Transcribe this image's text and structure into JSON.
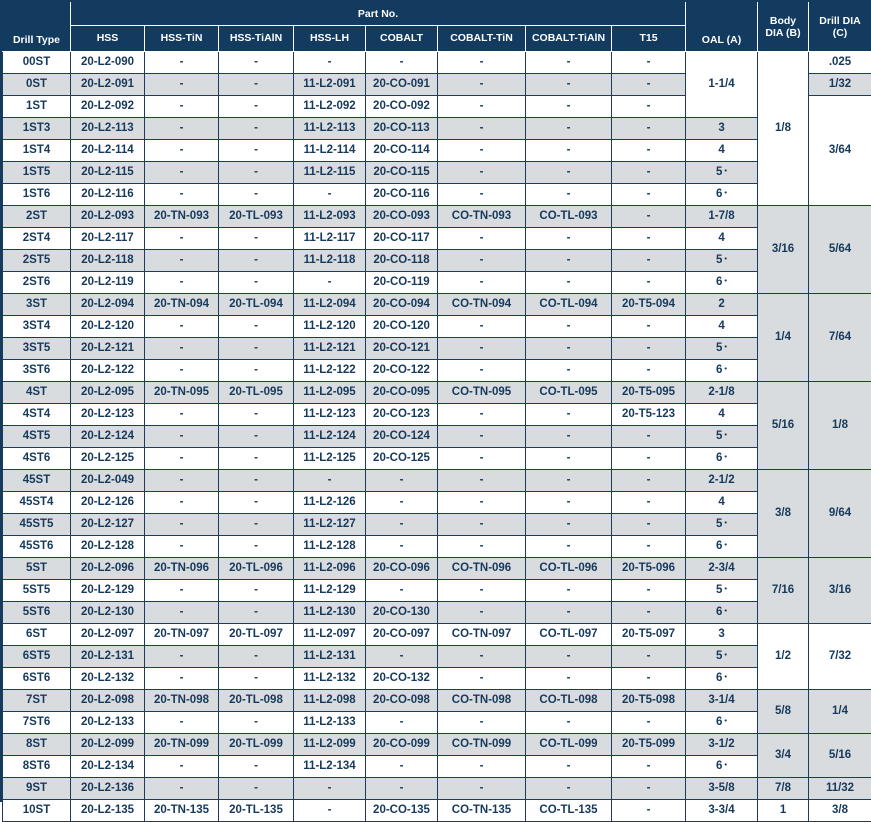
{
  "colors": {
    "header_bg": "#133a5f",
    "header_text": "#ffffff",
    "cell_text": "#16395c",
    "grid_border": "#1b3c60",
    "row_stripe": "#d8dcde",
    "row_white": "#ffffff"
  },
  "header": {
    "drill_type": "Drill Type",
    "part_no": "Part No.",
    "part_columns": [
      "HSS",
      "HSS-TiN",
      "HSS-TiAlN",
      "HSS-LH",
      "COBALT",
      "COBALT-TiN",
      "COBALT-TiAlN",
      "T15"
    ],
    "oal": "OAL (A)",
    "body_dia": "Body DIA (B)",
    "drill_dia": "Drill DIA (C)"
  },
  "rows": [
    {
      "type": "00ST",
      "parts": [
        "20-L2-090",
        "-",
        "-",
        "-",
        "-",
        "-",
        "-",
        "-"
      ],
      "oal": [
        "1-1/4",
        3
      ],
      "body": [
        "1/8",
        7
      ],
      "drill": [
        ".025",
        1
      ]
    },
    {
      "type": "0ST",
      "parts": [
        "20-L2-091",
        "-",
        "-",
        "11-L2-091",
        "20-CO-091",
        "-",
        "-",
        "-"
      ],
      "drill": [
        "1/32",
        1
      ]
    },
    {
      "type": "1ST",
      "parts": [
        "20-L2-092",
        "-",
        "-",
        "11-L2-092",
        "20-CO-092",
        "-",
        "-",
        "-"
      ],
      "drill": [
        "3/64",
        5
      ]
    },
    {
      "type": "1ST3",
      "parts": [
        "20-L2-113",
        "-",
        "-",
        "11-L2-113",
        "20-CO-113",
        "-",
        "-",
        "-"
      ],
      "oal": [
        "3",
        1
      ]
    },
    {
      "type": "1ST4",
      "parts": [
        "20-L2-114",
        "-",
        "-",
        "11-L2-114",
        "20-CO-114",
        "-",
        "-",
        "-"
      ],
      "oal": [
        "4",
        1
      ]
    },
    {
      "type": "1ST5",
      "parts": [
        "20-L2-115",
        "-",
        "-",
        "11-L2-115",
        "20-CO-115",
        "-",
        "-",
        "-"
      ],
      "oal": [
        "5 •",
        1
      ]
    },
    {
      "type": "1ST6",
      "parts": [
        "20-L2-116",
        "-",
        "-",
        "-",
        "20-CO-116",
        "-",
        "-",
        "-"
      ],
      "oal": [
        "6 •",
        1
      ]
    },
    {
      "type": "2ST",
      "parts": [
        "20-L2-093",
        "20-TN-093",
        "20-TL-093",
        "11-L2-093",
        "20-CO-093",
        "CO-TN-093",
        "CO-TL-093",
        "-"
      ],
      "oal": [
        "1-7/8",
        1
      ],
      "body": [
        "3/16",
        4
      ],
      "drill": [
        "5/64",
        4
      ]
    },
    {
      "type": "2ST4",
      "parts": [
        "20-L2-117",
        "-",
        "-",
        "11-L2-117",
        "20-CO-117",
        "-",
        "-",
        "-"
      ],
      "oal": [
        "4",
        1
      ]
    },
    {
      "type": "2ST5",
      "parts": [
        "20-L2-118",
        "-",
        "-",
        "11-L2-118",
        "20-CO-118",
        "-",
        "-",
        "-"
      ],
      "oal": [
        "5 •",
        1
      ]
    },
    {
      "type": "2ST6",
      "parts": [
        "20-L2-119",
        "-",
        "-",
        "-",
        "20-CO-119",
        "-",
        "-",
        "-"
      ],
      "oal": [
        "6 •",
        1
      ]
    },
    {
      "type": "3ST",
      "parts": [
        "20-L2-094",
        "20-TN-094",
        "20-TL-094",
        "11-L2-094",
        "20-CO-094",
        "CO-TN-094",
        "CO-TL-094",
        "20-T5-094"
      ],
      "oal": [
        "2",
        1
      ],
      "body": [
        "1/4",
        4
      ],
      "drill": [
        "7/64",
        4
      ]
    },
    {
      "type": "3ST4",
      "parts": [
        "20-L2-120",
        "-",
        "-",
        "11-L2-120",
        "20-CO-120",
        "-",
        "-",
        "-"
      ],
      "oal": [
        "4",
        1
      ]
    },
    {
      "type": "3ST5",
      "parts": [
        "20-L2-121",
        "-",
        "-",
        "11-L2-121",
        "20-CO-121",
        "-",
        "-",
        "-"
      ],
      "oal": [
        "5 •",
        1
      ]
    },
    {
      "type": "3ST6",
      "parts": [
        "20-L2-122",
        "-",
        "-",
        "11-L2-122",
        "20-CO-122",
        "-",
        "-",
        "-"
      ],
      "oal": [
        "6 •",
        1
      ]
    },
    {
      "type": "4ST",
      "parts": [
        "20-L2-095",
        "20-TN-095",
        "20-TL-095",
        "11-L2-095",
        "20-CO-095",
        "CO-TN-095",
        "CO-TL-095",
        "20-T5-095"
      ],
      "oal": [
        "2-1/8",
        1
      ],
      "body": [
        "5/16",
        4
      ],
      "drill": [
        "1/8",
        4
      ]
    },
    {
      "type": "4ST4",
      "parts": [
        "20-L2-123",
        "-",
        "-",
        "11-L2-123",
        "20-CO-123",
        "-",
        "-",
        "20-T5-123"
      ],
      "oal": [
        "4",
        1
      ]
    },
    {
      "type": "4ST5",
      "parts": [
        "20-L2-124",
        "-",
        "-",
        "11-L2-124",
        "20-CO-124",
        "-",
        "-",
        "-"
      ],
      "oal": [
        "5 •",
        1
      ]
    },
    {
      "type": "4ST6",
      "parts": [
        "20-L2-125",
        "-",
        "-",
        "11-L2-125",
        "20-CO-125",
        "-",
        "-",
        "-"
      ],
      "oal": [
        "6 •",
        1
      ]
    },
    {
      "type": "45ST",
      "parts": [
        "20-L2-049",
        "-",
        "-",
        "-",
        "-",
        "-",
        "-",
        "-"
      ],
      "oal": [
        "2-1/2",
        1
      ],
      "body": [
        "3/8",
        4
      ],
      "drill": [
        "9/64",
        4
      ]
    },
    {
      "type": "45ST4",
      "parts": [
        "20-L2-126",
        "-",
        "-",
        "11-L2-126",
        "-",
        "-",
        "-",
        "-"
      ],
      "oal": [
        "4",
        1
      ]
    },
    {
      "type": "45ST5",
      "parts": [
        "20-L2-127",
        "-",
        "-",
        "11-L2-127",
        "-",
        "-",
        "-",
        "-"
      ],
      "oal": [
        "5 •",
        1
      ]
    },
    {
      "type": "45ST6",
      "parts": [
        "20-L2-128",
        "-",
        "-",
        "11-L2-128",
        "-",
        "-",
        "-",
        "-"
      ],
      "oal": [
        "6 •",
        1
      ]
    },
    {
      "type": "5ST",
      "parts": [
        "20-L2-096",
        "20-TN-096",
        "20-TL-096",
        "11-L2-096",
        "20-CO-096",
        "CO-TN-096",
        "CO-TL-096",
        "20-T5-096"
      ],
      "oal": [
        "2-3/4",
        1
      ],
      "body": [
        "7/16",
        3
      ],
      "drill": [
        "3/16",
        3
      ]
    },
    {
      "type": "5ST5",
      "parts": [
        "20-L2-129",
        "-",
        "-",
        "11-L2-129",
        "-",
        "-",
        "-",
        "-"
      ],
      "oal": [
        "5 •",
        1
      ]
    },
    {
      "type": "5ST6",
      "parts": [
        "20-L2-130",
        "-",
        "-",
        "11-L2-130",
        "20-CO-130",
        "-",
        "-",
        "-"
      ],
      "oal": [
        "6 •",
        1
      ]
    },
    {
      "type": "6ST",
      "parts": [
        "20-L2-097",
        "20-TN-097",
        "20-TL-097",
        "11-L2-097",
        "20-CO-097",
        "CO-TN-097",
        "CO-TL-097",
        "20-T5-097"
      ],
      "oal": [
        "3",
        1
      ],
      "body": [
        "1/2",
        3
      ],
      "drill": [
        "7/32",
        3
      ]
    },
    {
      "type": "6ST5",
      "parts": [
        "20-L2-131",
        "-",
        "-",
        "11-L2-131",
        "-",
        "-",
        "-",
        "-"
      ],
      "oal": [
        "5 •",
        1
      ]
    },
    {
      "type": "6ST6",
      "parts": [
        "20-L2-132",
        "-",
        "-",
        "11-L2-132",
        "20-CO-132",
        "-",
        "-",
        "-"
      ],
      "oal": [
        "6 •",
        1
      ]
    },
    {
      "type": "7ST",
      "parts": [
        "20-L2-098",
        "20-TN-098",
        "20-TL-098",
        "11-L2-098",
        "20-CO-098",
        "CO-TN-098",
        "CO-TL-098",
        "20-T5-098"
      ],
      "oal": [
        "3-1/4",
        1
      ],
      "body": [
        "5/8",
        2
      ],
      "drill": [
        "1/4",
        2
      ]
    },
    {
      "type": "7ST6",
      "parts": [
        "20-L2-133",
        "-",
        "-",
        "11-L2-133",
        "-",
        "-",
        "-",
        "-"
      ],
      "oal": [
        "6 •",
        1
      ]
    },
    {
      "type": "8ST",
      "parts": [
        "20-L2-099",
        "20-TN-099",
        "20-TL-099",
        "11-L2-099",
        "20-CO-099",
        "CO-TN-099",
        "CO-TL-099",
        "20-T5-099"
      ],
      "oal": [
        "3-1/2",
        1
      ],
      "body": [
        "3/4",
        2
      ],
      "drill": [
        "5/16",
        2
      ]
    },
    {
      "type": "8ST6",
      "parts": [
        "20-L2-134",
        "-",
        "-",
        "11-L2-134",
        "-",
        "-",
        "-",
        "-"
      ],
      "oal": [
        "6 •",
        1
      ]
    },
    {
      "type": "9ST",
      "parts": [
        "20-L2-136",
        "-",
        "-",
        "-",
        "-",
        "-",
        "-",
        "-"
      ],
      "oal": [
        "3-5/8",
        1
      ],
      "body": [
        "7/8",
        1
      ],
      "drill": [
        "11/32",
        1
      ]
    },
    {
      "type": "10ST",
      "parts": [
        "20-L2-135",
        "20-TN-135",
        "20-TL-135",
        "-",
        "20-CO-135",
        "CO-TN-135",
        "CO-TL-135",
        "-"
      ],
      "oal": [
        "3-3/4",
        1
      ],
      "body": [
        "1",
        1
      ],
      "drill": [
        "3/8",
        1
      ]
    }
  ]
}
